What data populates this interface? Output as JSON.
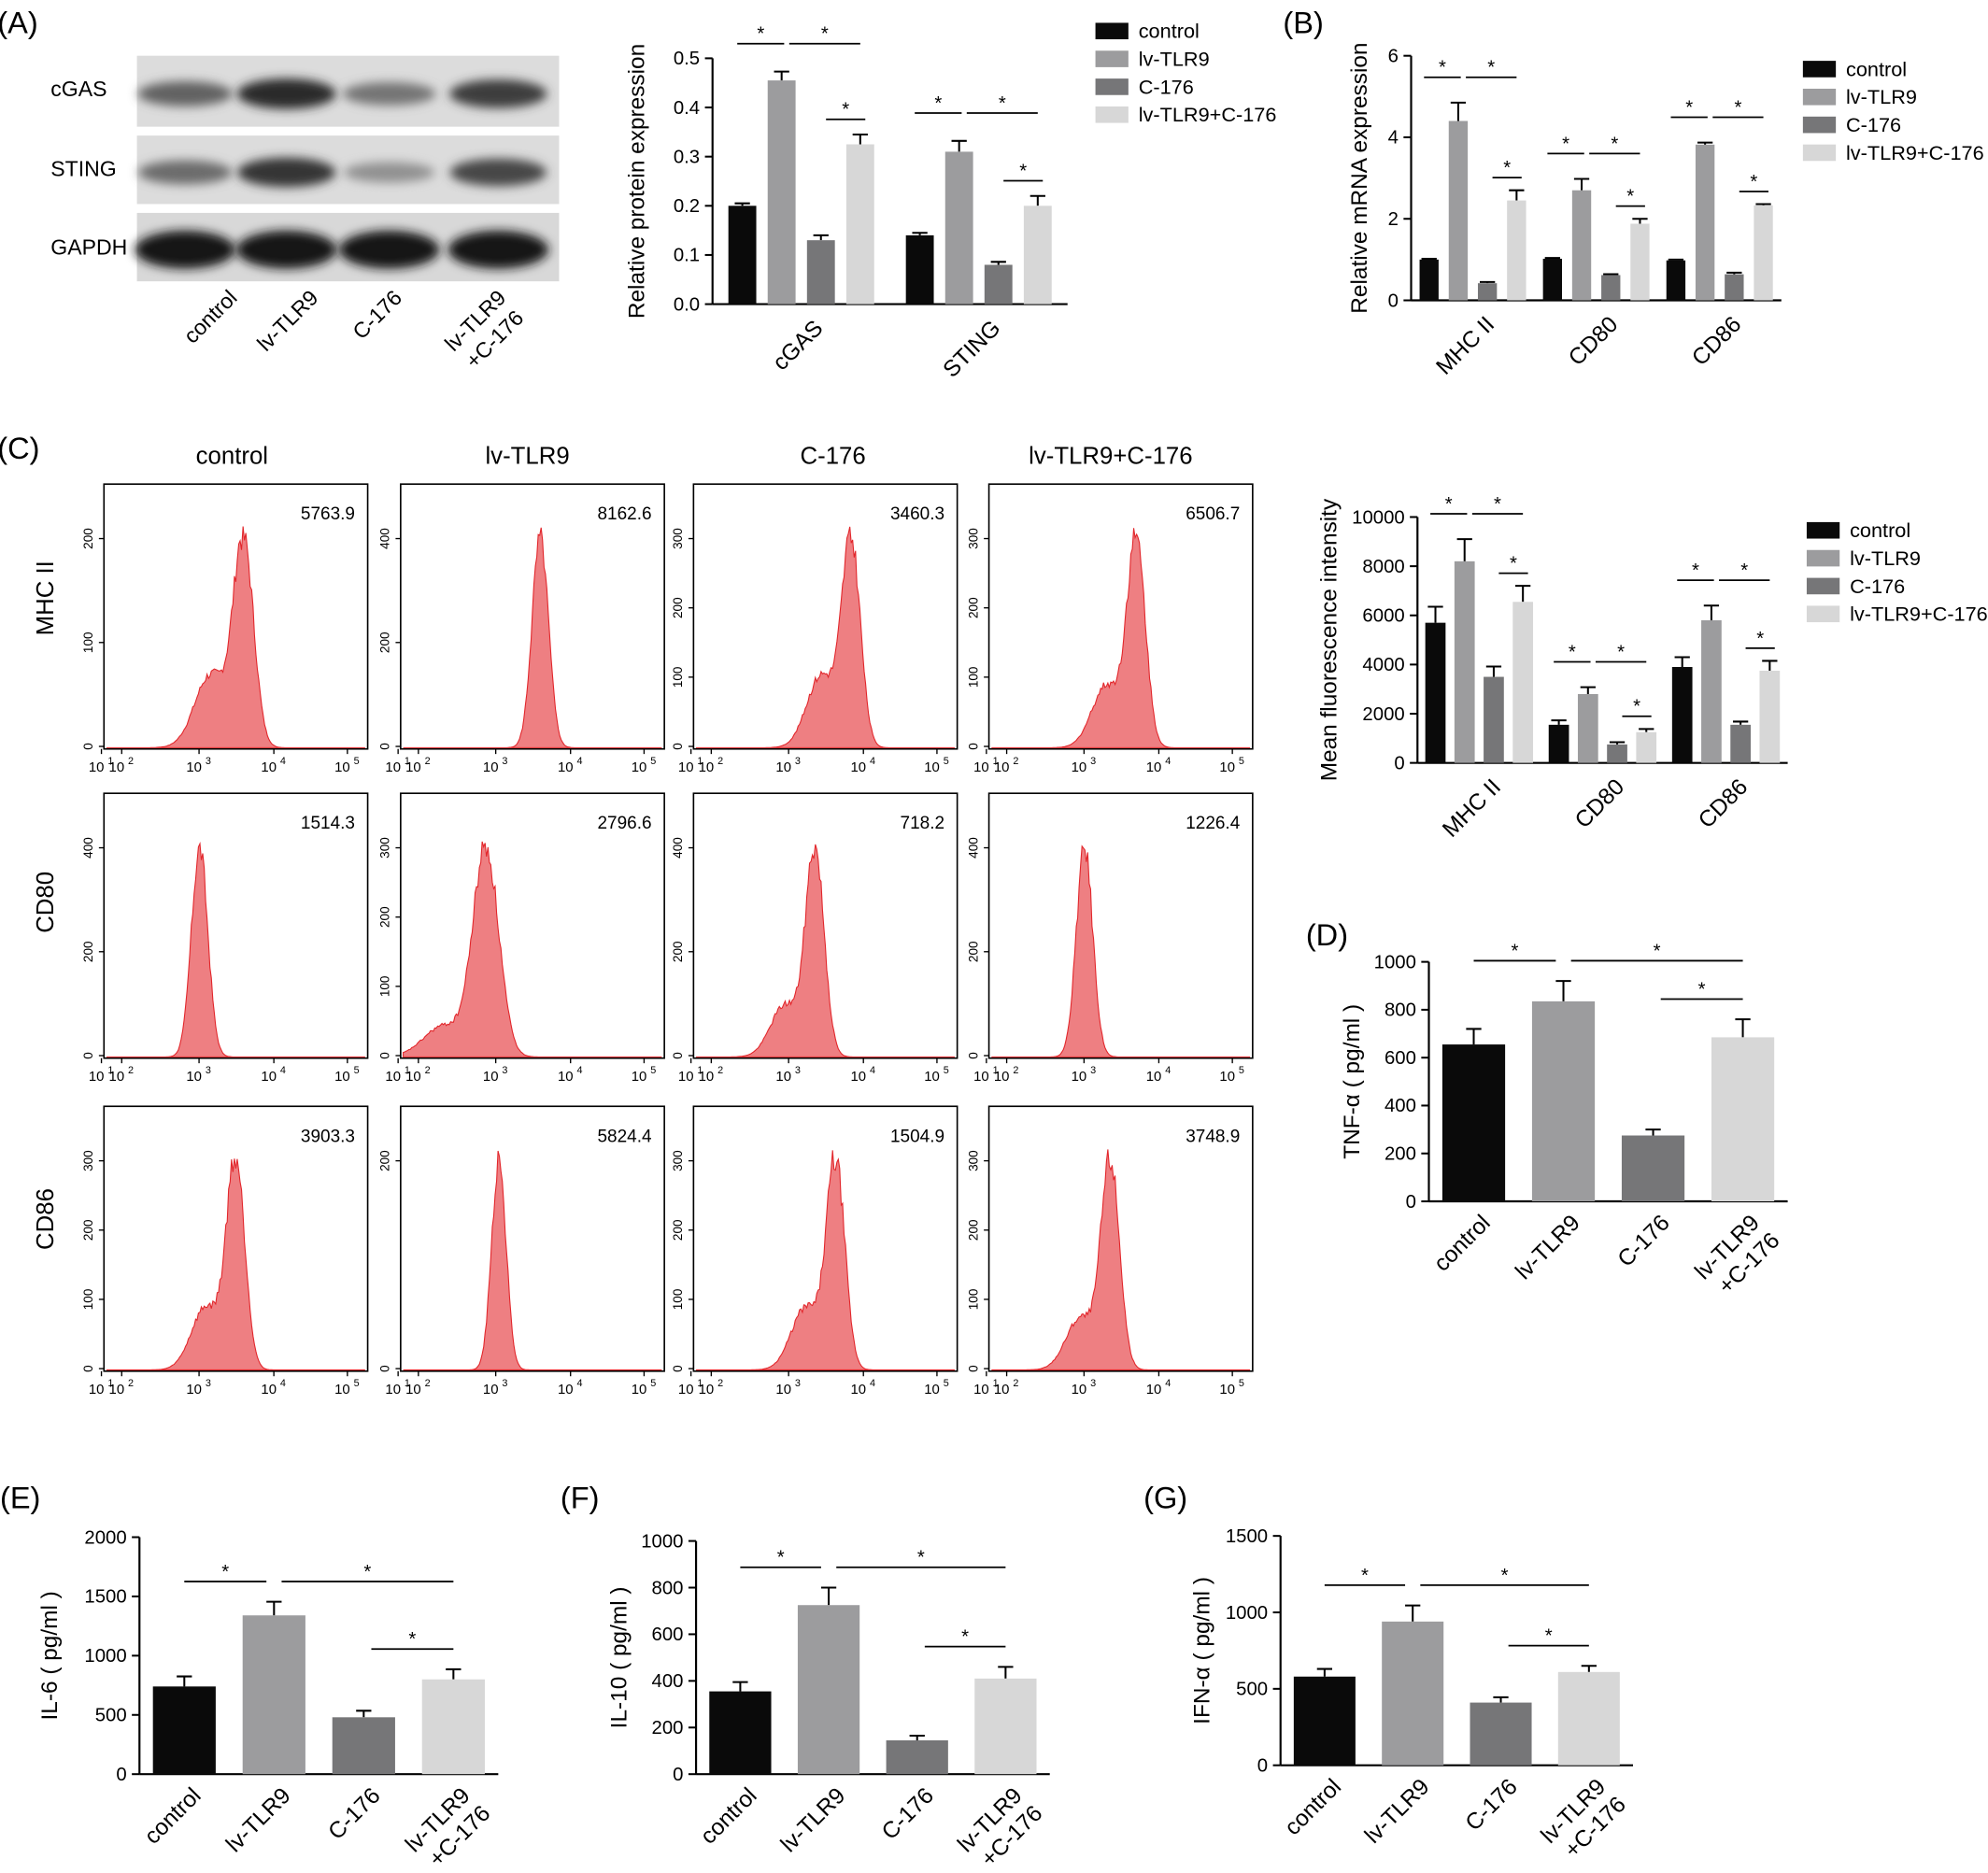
{
  "colors": {
    "control": "#0a0a0a",
    "lv_tlr9": "#9c9c9e",
    "c176": "#767678",
    "lv_c176": "#d7d7d7",
    "hist": "#ee7f82",
    "hist_edge": "#e2262b"
  },
  "panels": {
    "A": {
      "label": "(A)"
    },
    "B": {
      "label": "(B)"
    },
    "C": {
      "label": "(C)"
    },
    "D": {
      "label": "(D)"
    },
    "E": {
      "label": "(E)"
    },
    "F": {
      "label": "(F)"
    },
    "G": {
      "label": "(G)"
    }
  },
  "blot": {
    "rows": [
      "cGAS",
      "STING",
      "GAPDH"
    ],
    "lanes": [
      "control",
      "lv-TLR9",
      "C-176",
      "lv-TLR9",
      "+C-176"
    ],
    "intensity": [
      [
        0.55,
        0.85,
        0.45,
        0.75
      ],
      [
        0.5,
        0.8,
        0.3,
        0.7
      ],
      [
        0.95,
        0.95,
        0.95,
        0.95
      ]
    ]
  },
  "groups": [
    "control",
    "lv-TLR9",
    "C-176",
    "lv-TLR9+C-176"
  ],
  "xgroups": [
    "control",
    "lv-TLR9",
    "C-176",
    "lv-TLR9",
    "+C-176"
  ],
  "flow": {
    "columns": [
      "control",
      "lv-TLR9",
      "C-176",
      "lv-TLR9+C-176"
    ],
    "rows": [
      "MHC II",
      "CD80",
      "CD86"
    ],
    "x_ticks": [
      "10",
      "10",
      "10",
      "10",
      "10"
    ],
    "x_exps": [
      "1",
      "2",
      "3",
      "4",
      "5"
    ],
    "mfi": [
      [
        "5763.9",
        "8162.6",
        "3460.3",
        "6506.7"
      ],
      [
        "1514.3",
        "2796.6",
        "718.2",
        "1226.4"
      ],
      [
        "3903.3",
        "5824.4",
        "1504.9",
        "3748.9"
      ]
    ],
    "y_ticks": [
      [
        [
          "0",
          "100",
          "200"
        ],
        [
          "0",
          "200",
          "400"
        ],
        [
          "0",
          "100",
          "200",
          "300"
        ],
        [
          "0",
          "100",
          "200",
          "300"
        ]
      ],
      [
        [
          "0",
          "200",
          "400"
        ],
        [
          "0",
          "100",
          "200",
          "300"
        ],
        [
          "0",
          "200",
          "400"
        ],
        [
          "0",
          "200",
          "400"
        ]
      ],
      [
        [
          "0",
          "100",
          "200",
          "300"
        ],
        [
          "0",
          "200"
        ],
        [
          "0",
          "100",
          "200",
          "300"
        ],
        [
          "0",
          "100",
          "200",
          "300"
        ]
      ]
    ]
  },
  "chart_data": [
    {
      "id": "A",
      "type": "bar",
      "categories": [
        "cGAS",
        "STING"
      ],
      "ylabel": "Relative protein expression",
      "ylim": [
        0,
        0.5
      ],
      "yticks": [
        "0.0",
        "0.1",
        "0.2",
        "0.3",
        "0.4",
        "0.5"
      ],
      "series": [
        {
          "name": "control",
          "values": [
            0.2,
            0.14
          ],
          "errors": [
            0.005,
            0.005
          ]
        },
        {
          "name": "lv-TLR9",
          "values": [
            0.455,
            0.31
          ],
          "errors": [
            0.018,
            0.022
          ]
        },
        {
          "name": "C-176",
          "values": [
            0.13,
            0.08
          ],
          "errors": [
            0.01,
            0.006
          ]
        },
        {
          "name": "lv-TLR9+C-176",
          "values": [
            0.325,
            0.2
          ],
          "errors": [
            0.02,
            0.02
          ]
        }
      ],
      "significance": "*"
    },
    {
      "id": "B",
      "type": "bar",
      "categories": [
        "MHC II",
        "CD80",
        "CD86"
      ],
      "ylabel": "Relative mRNA expression",
      "ylim": [
        0,
        6
      ],
      "yticks": [
        "0",
        "2",
        "4",
        "6"
      ],
      "series": [
        {
          "name": "control",
          "values": [
            1.0,
            1.02,
            0.98
          ],
          "errors": [
            0.02,
            0.02,
            0.02
          ]
        },
        {
          "name": "lv-TLR9",
          "values": [
            4.4,
            2.7,
            3.82
          ],
          "errors": [
            0.45,
            0.28,
            0.05
          ]
        },
        {
          "name": "C-176",
          "values": [
            0.42,
            0.62,
            0.64
          ],
          "errors": [
            0.03,
            0.02,
            0.04
          ]
        },
        {
          "name": "lv-TLR9+C-176",
          "values": [
            2.45,
            1.88,
            2.33
          ],
          "errors": [
            0.25,
            0.12,
            0.03
          ]
        }
      ],
      "significance": "*"
    },
    {
      "id": "C",
      "type": "bar",
      "categories": [
        "MHC II",
        "CD80",
        "CD86"
      ],
      "ylabel": "Mean fluorescence intensity",
      "ylim": [
        0,
        10000
      ],
      "yticks": [
        "0",
        "2000",
        "4000",
        "6000",
        "8000",
        "10000"
      ],
      "series": [
        {
          "name": "control",
          "values": [
            5700,
            1550,
            3900
          ],
          "errors": [
            650,
            180,
            400
          ]
        },
        {
          "name": "lv-TLR9",
          "values": [
            8200,
            2800,
            5800
          ],
          "errors": [
            900,
            280,
            600
          ]
        },
        {
          "name": "C-176",
          "values": [
            3500,
            750,
            1550
          ],
          "errors": [
            420,
            90,
            130
          ]
        },
        {
          "name": "lv-TLR9+C-176",
          "values": [
            6550,
            1250,
            3750
          ],
          "errors": [
            650,
            130,
            400
          ]
        }
      ],
      "significance": "*"
    },
    {
      "id": "D",
      "type": "bar",
      "categories": [
        "control",
        "lv-TLR9",
        "C-176",
        "lv-TLR9+C-176"
      ],
      "ylabel": "TNF-α ( pg/ml )",
      "ylim": [
        0,
        1000
      ],
      "yticks": [
        "0",
        "200",
        "400",
        "600",
        "800",
        "1000"
      ],
      "values": [
        655,
        835,
        275,
        685
      ],
      "errors": [
        65,
        85,
        25,
        75
      ],
      "significance": "*"
    },
    {
      "id": "E",
      "type": "bar",
      "categories": [
        "control",
        "lv-TLR9",
        "C-176",
        "lv-TLR9+C-176"
      ],
      "ylabel": "IL-6 ( pg/ml )",
      "ylim": [
        0,
        2000
      ],
      "yticks": [
        "0",
        "500",
        "1000",
        "1500",
        "2000"
      ],
      "values": [
        740,
        1340,
        480,
        800
      ],
      "errors": [
        85,
        115,
        55,
        85
      ],
      "significance": "*"
    },
    {
      "id": "F",
      "type": "bar",
      "categories": [
        "control",
        "lv-TLR9",
        "C-176",
        "lv-TLR9+C-176"
      ],
      "ylabel": "IL-10 ( pg/ml )",
      "ylim": [
        0,
        1000
      ],
      "yticks": [
        "0",
        "200",
        "400",
        "600",
        "800",
        "1000"
      ],
      "values": [
        355,
        725,
        145,
        410
      ],
      "errors": [
        40,
        75,
        20,
        50
      ],
      "significance": "*"
    },
    {
      "id": "G",
      "type": "bar",
      "categories": [
        "control",
        "lv-TLR9",
        "C-176",
        "lv-TLR9+C-176"
      ],
      "ylabel": "IFN-α ( pg/ml )",
      "ylim": [
        0,
        1500
      ],
      "yticks": [
        "0",
        "500",
        "1000",
        "1500"
      ],
      "values": [
        580,
        940,
        410,
        610
      ],
      "errors": [
        50,
        105,
        35,
        40
      ],
      "significance": "*"
    }
  ]
}
